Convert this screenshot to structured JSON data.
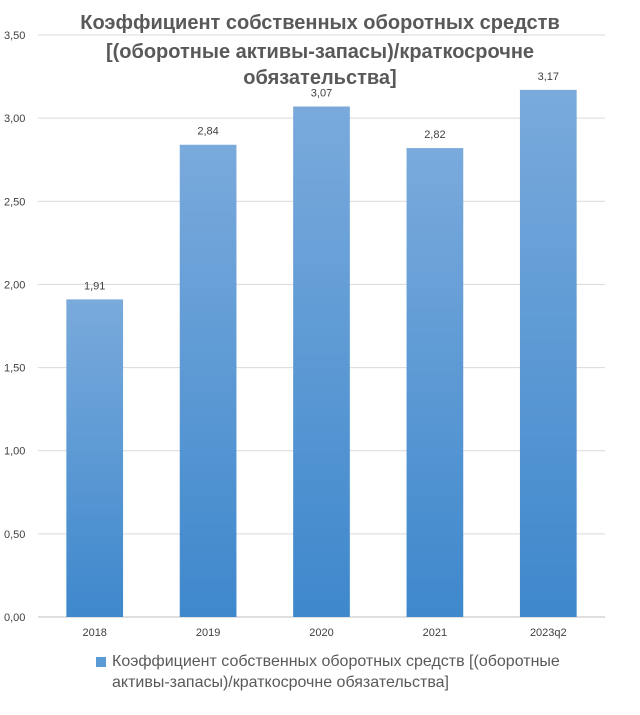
{
  "chart_data": {
    "type": "bar",
    "title_lines": [
      "Коэффициент собственных оборотных средств",
      "[(оборотные активы-запасы)/краткосрочне",
      "обязательства]"
    ],
    "categories": [
      "2018",
      "2019",
      "2020",
      "2021",
      "2023q2"
    ],
    "series": [
      {
        "name": "Коэффициент собственных оборотных средств [(оборотные активы-запасы)/краткосрочне обязательства]",
        "values": [
          1.91,
          2.84,
          3.07,
          2.82,
          3.17
        ],
        "value_labels": [
          "1,91",
          "2,84",
          "3,07",
          "2,82",
          "3,17"
        ]
      }
    ],
    "ylim": [
      0,
      3.5
    ],
    "yticks": [
      0,
      0.5,
      1,
      1.5,
      2,
      2.5,
      3,
      3.5
    ],
    "ytick_labels": [
      "0,00",
      "0,50",
      "1,00",
      "1,50",
      "2,00",
      "2,50",
      "3,00",
      "3,50"
    ],
    "xlabel": "",
    "ylabel": "",
    "grid": true,
    "legend_position": "bottom",
    "colors": {
      "bar_top": "#7AAADC",
      "bar_bottom": "#3E88CC",
      "legend_swatch": "#5B9BD5",
      "gridline": "#D9D9D9",
      "axis": "#BFBFBF"
    }
  }
}
